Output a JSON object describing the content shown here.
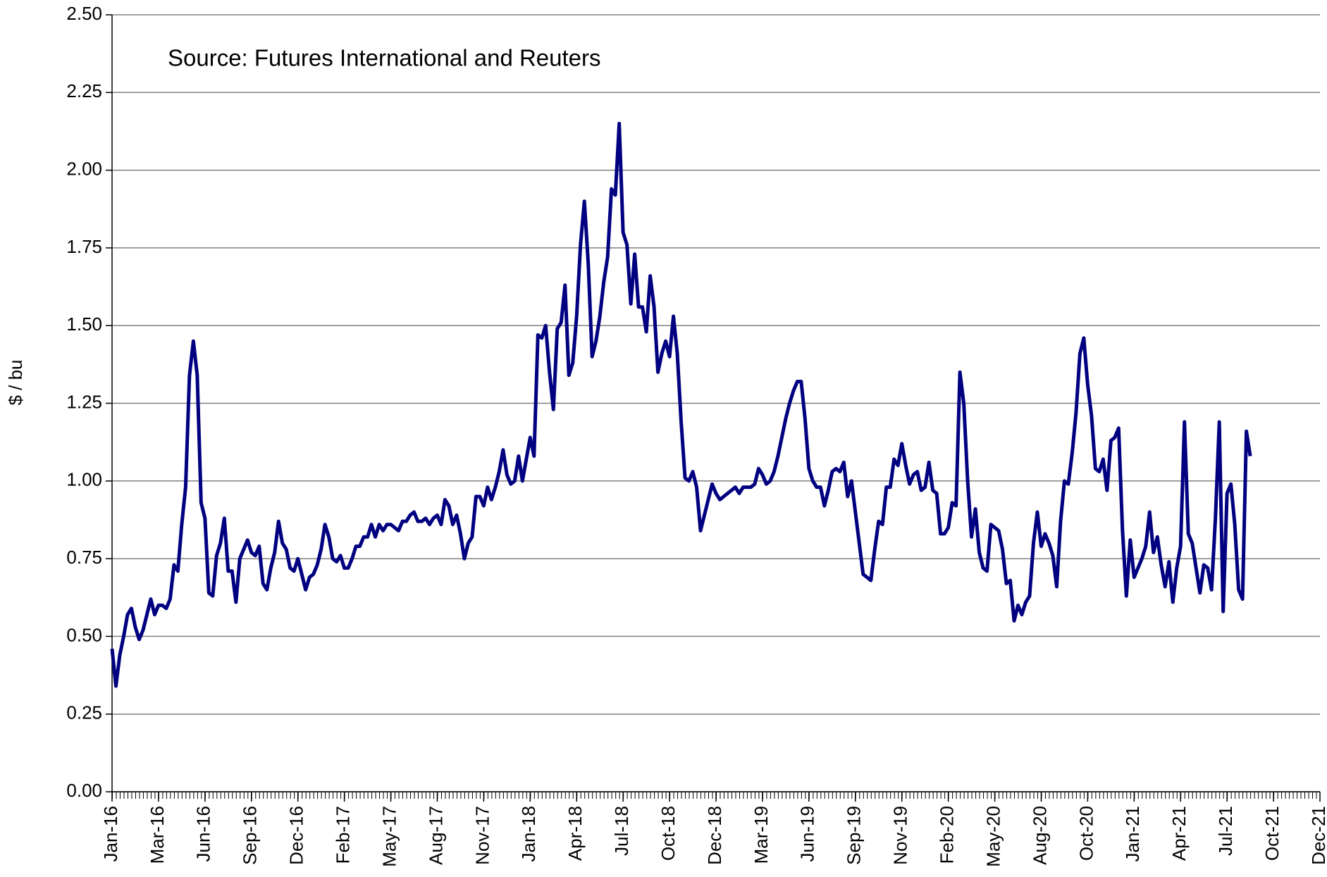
{
  "chart_data": {
    "type": "line",
    "annotation": "Source: Futures International and Reuters",
    "y_label": "$ / bu",
    "color": "#000080",
    "grid": true,
    "xlim": [
      0,
      312
    ],
    "ylim": [
      0,
      2.5
    ],
    "yticks": [
      {
        "value": 0,
        "label": "0.00"
      },
      {
        "value": 0.25,
        "label": "0.25"
      },
      {
        "value": 0.5,
        "label": "0.50"
      },
      {
        "value": 0.75,
        "label": "0.75"
      },
      {
        "value": 1,
        "label": "1.00"
      },
      {
        "value": 1.25,
        "label": "1.25"
      },
      {
        "value": 1.5,
        "label": "1.50"
      },
      {
        "value": 1.75,
        "label": "1.75"
      },
      {
        "value": 2,
        "label": "2.00"
      },
      {
        "value": 2.25,
        "label": "2.25"
      },
      {
        "value": 2.5,
        "label": "2.50"
      }
    ],
    "xticks": [
      {
        "value": 0,
        "label": "Jan-16"
      },
      {
        "value": 12,
        "label": "Mar-16"
      },
      {
        "value": 24,
        "label": "Jun-16"
      },
      {
        "value": 36,
        "label": "Sep-16"
      },
      {
        "value": 48,
        "label": "Dec-16"
      },
      {
        "value": 60,
        "label": "Feb-17"
      },
      {
        "value": 72,
        "label": "May-17"
      },
      {
        "value": 84,
        "label": "Aug-17"
      },
      {
        "value": 96,
        "label": "Nov-17"
      },
      {
        "value": 108,
        "label": "Jan-18"
      },
      {
        "value": 120,
        "label": "Apr-18"
      },
      {
        "value": 132,
        "label": "Jul-18"
      },
      {
        "value": 144,
        "label": "Oct-18"
      },
      {
        "value": 156,
        "label": "Dec-18"
      },
      {
        "value": 168,
        "label": "Mar-19"
      },
      {
        "value": 180,
        "label": "Jun-19"
      },
      {
        "value": 192,
        "label": "Sep-19"
      },
      {
        "value": 204,
        "label": "Nov-19"
      },
      {
        "value": 216,
        "label": "Feb-20"
      },
      {
        "value": 228,
        "label": "May-20"
      },
      {
        "value": 240,
        "label": "Aug-20"
      },
      {
        "value": 252,
        "label": "Oct-20"
      },
      {
        "value": 264,
        "label": "Jan-21"
      },
      {
        "value": 276,
        "label": "Apr-21"
      },
      {
        "value": 288,
        "label": "Jul-21"
      },
      {
        "value": 300,
        "label": "Oct-21"
      },
      {
        "value": 312,
        "label": "Dec-21"
      }
    ],
    "x": [
      0,
      1,
      2,
      3,
      4,
      5,
      6,
      7,
      8,
      9,
      10,
      11,
      12,
      13,
      14,
      15,
      16,
      17,
      18,
      19,
      20,
      21,
      22,
      23,
      24,
      25,
      26,
      27,
      28,
      29,
      30,
      31,
      32,
      33,
      34,
      35,
      36,
      37,
      38,
      39,
      40,
      41,
      42,
      43,
      44,
      45,
      46,
      47,
      48,
      49,
      50,
      51,
      52,
      53,
      54,
      55,
      56,
      57,
      58,
      59,
      60,
      61,
      62,
      63,
      64,
      65,
      66,
      67,
      68,
      69,
      70,
      71,
      72,
      73,
      74,
      75,
      76,
      77,
      78,
      79,
      80,
      81,
      82,
      83,
      84,
      85,
      86,
      87,
      88,
      89,
      90,
      91,
      92,
      93,
      94,
      95,
      96,
      97,
      98,
      99,
      100,
      101,
      102,
      103,
      104,
      105,
      106,
      107,
      108,
      109,
      110,
      111,
      112,
      113,
      114,
      115,
      116,
      117,
      118,
      119,
      120,
      121,
      122,
      123,
      124,
      125,
      126,
      127,
      128,
      129,
      130,
      131,
      132,
      133,
      134,
      135,
      136,
      137,
      138,
      139,
      140,
      141,
      142,
      143,
      144,
      145,
      146,
      147,
      148,
      149,
      150,
      151,
      152,
      153,
      154,
      155,
      156,
      157,
      158,
      159,
      160,
      161,
      162,
      163,
      164,
      165,
      166,
      167,
      168,
      169,
      170,
      171,
      172,
      173,
      174,
      175,
      176,
      177,
      178,
      179,
      180,
      181,
      182,
      183,
      184,
      185,
      186,
      187,
      188,
      189,
      190,
      191,
      192,
      193,
      194,
      195,
      196,
      197,
      198,
      199,
      200,
      201,
      202,
      203,
      204,
      205,
      206,
      207,
      208,
      209,
      210,
      211,
      212,
      213,
      214,
      215,
      216,
      217,
      218,
      219,
      220,
      221,
      222,
      223,
      224,
      225,
      226,
      227,
      228,
      229,
      230,
      231,
      232,
      233,
      234,
      235,
      236,
      237,
      238,
      239,
      240,
      241,
      242,
      243,
      244,
      245,
      246,
      247,
      248,
      249,
      250,
      251,
      252,
      253,
      254,
      255,
      256,
      257,
      258,
      259,
      260,
      261,
      262,
      263,
      264,
      265,
      266,
      267,
      268,
      269,
      270,
      271,
      272,
      273,
      274,
      275,
      276,
      277,
      278,
      279,
      280,
      281,
      282,
      283,
      284,
      285,
      286,
      287,
      288,
      289,
      290,
      291,
      292,
      293,
      294
    ],
    "values": [
      0.46,
      0.34,
      0.44,
      0.5,
      0.57,
      0.59,
      0.53,
      0.49,
      0.52,
      0.57,
      0.62,
      0.57,
      0.6,
      0.6,
      0.59,
      0.62,
      0.73,
      0.71,
      0.86,
      0.98,
      1.34,
      1.45,
      1.34,
      0.93,
      0.88,
      0.64,
      0.63,
      0.76,
      0.8,
      0.88,
      0.71,
      0.71,
      0.61,
      0.75,
      0.78,
      0.81,
      0.77,
      0.76,
      0.79,
      0.67,
      0.65,
      0.72,
      0.77,
      0.87,
      0.8,
      0.78,
      0.72,
      0.71,
      0.75,
      0.7,
      0.65,
      0.69,
      0.7,
      0.73,
      0.78,
      0.86,
      0.82,
      0.75,
      0.74,
      0.76,
      0.72,
      0.72,
      0.75,
      0.79,
      0.79,
      0.82,
      0.82,
      0.86,
      0.82,
      0.86,
      0.84,
      0.86,
      0.86,
      0.85,
      0.84,
      0.87,
      0.87,
      0.89,
      0.9,
      0.87,
      0.87,
      0.88,
      0.86,
      0.88,
      0.89,
      0.86,
      0.94,
      0.92,
      0.86,
      0.89,
      0.83,
      0.75,
      0.8,
      0.82,
      0.95,
      0.95,
      0.92,
      0.98,
      0.94,
      0.98,
      1.03,
      1.1,
      1.02,
      0.99,
      1.0,
      1.08,
      1.0,
      1.07,
      1.14,
      1.08,
      1.47,
      1.46,
      1.5,
      1.35,
      1.23,
      1.49,
      1.51,
      1.63,
      1.34,
      1.38,
      1.53,
      1.76,
      1.9,
      1.7,
      1.4,
      1.45,
      1.53,
      1.64,
      1.72,
      1.94,
      1.92,
      2.15,
      1.8,
      1.76,
      1.57,
      1.73,
      1.56,
      1.56,
      1.48,
      1.66,
      1.56,
      1.35,
      1.41,
      1.45,
      1.4,
      1.53,
      1.41,
      1.19,
      1.01,
      1.0,
      1.03,
      0.98,
      0.84,
      0.89,
      0.94,
      0.99,
      0.96,
      0.94,
      0.95,
      0.96,
      0.97,
      0.98,
      0.96,
      0.98,
      0.98,
      0.98,
      0.99,
      1.04,
      1.02,
      0.99,
      1.0,
      1.03,
      1.08,
      1.14,
      1.2,
      1.25,
      1.29,
      1.32,
      1.32,
      1.2,
      1.04,
      1.0,
      0.98,
      0.98,
      0.92,
      0.97,
      1.03,
      1.04,
      1.03,
      1.06,
      0.95,
      1.0,
      0.9,
      0.8,
      0.7,
      0.69,
      0.68,
      0.78,
      0.87,
      0.86,
      0.98,
      0.98,
      1.07,
      1.05,
      1.12,
      1.05,
      0.99,
      1.02,
      1.03,
      0.97,
      0.98,
      1.06,
      0.97,
      0.96,
      0.83,
      0.83,
      0.85,
      0.93,
      0.92,
      1.35,
      1.25,
      1.0,
      0.82,
      0.91,
      0.77,
      0.72,
      0.71,
      0.86,
      0.85,
      0.84,
      0.78,
      0.67,
      0.68,
      0.55,
      0.6,
      0.57,
      0.61,
      0.63,
      0.8,
      0.9,
      0.79,
      0.83,
      0.8,
      0.76,
      0.66,
      0.87,
      1.0,
      0.99,
      1.09,
      1.22,
      1.41,
      1.46,
      1.31,
      1.21,
      1.04,
      1.03,
      1.07,
      0.97,
      1.13,
      1.14,
      1.17,
      0.84,
      0.63,
      0.81,
      0.69,
      0.72,
      0.75,
      0.79,
      0.9,
      0.77,
      0.82,
      0.73,
      0.66,
      0.74,
      0.61,
      0.72,
      0.79,
      1.19,
      0.83,
      0.8,
      0.72,
      0.64,
      0.73,
      0.72,
      0.65,
      0.88,
      1.19,
      0.58,
      0.96,
      0.99,
      0.86,
      0.65,
      0.62,
      1.16,
      1.08
    ]
  }
}
